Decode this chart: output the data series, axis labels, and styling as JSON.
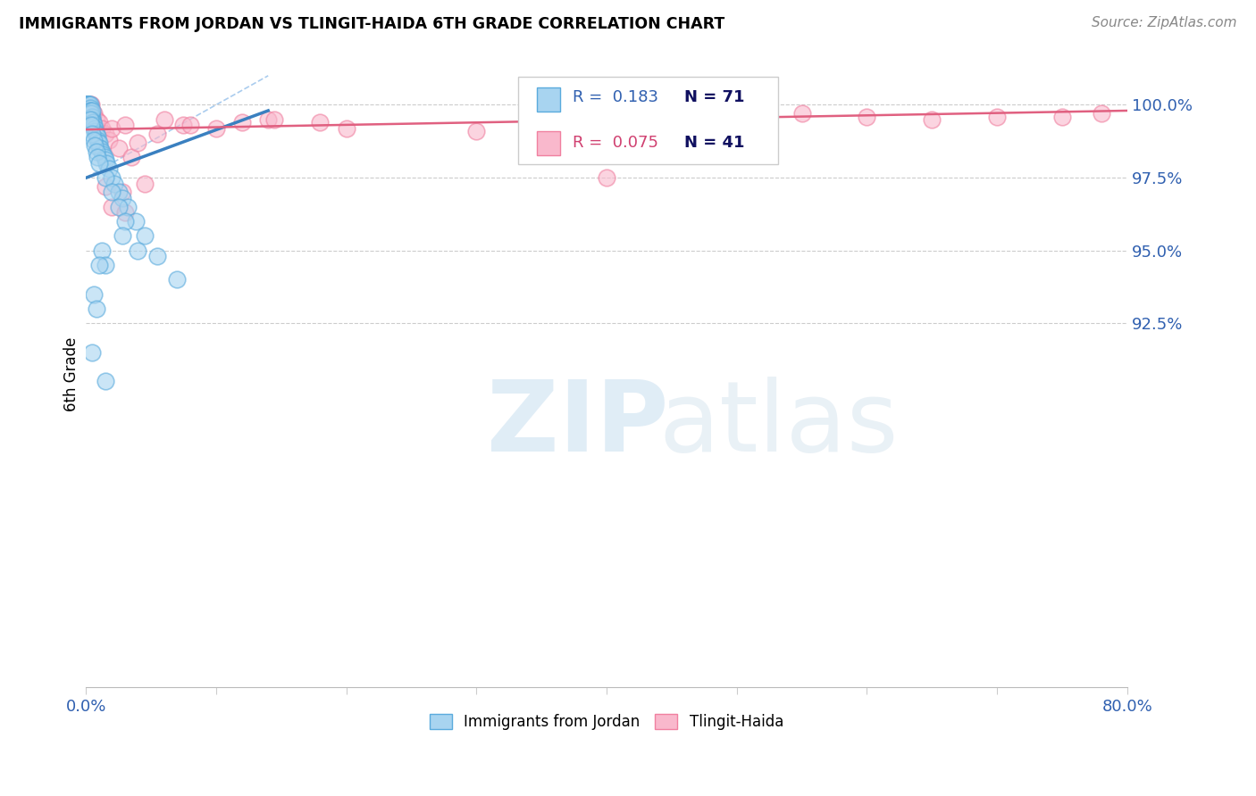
{
  "title": "IMMIGRANTS FROM JORDAN VS TLINGIT-HAIDA 6TH GRADE CORRELATION CHART",
  "source": "Source: ZipAtlas.com",
  "ylabel": "6th Grade",
  "xmin": 0.0,
  "xmax": 80.0,
  "ymin": 80.0,
  "ymax": 101.5,
  "yticks": [
    92.5,
    95.0,
    97.5,
    100.0
  ],
  "ytick_labels": [
    "92.5%",
    "95.0%",
    "97.5%",
    "100.0%"
  ],
  "legend_r1": "R =  0.183",
  "legend_n1": "N = 71",
  "legend_r2": "R =  0.075",
  "legend_n2": "N = 41",
  "color_blue": "#a8d4f0",
  "color_pink": "#f9b8cc",
  "color_blue_edge": "#5aabdd",
  "color_pink_edge": "#f080a0",
  "color_blue_line": "#3a80c0",
  "color_pink_line": "#e06080",
  "color_blue_text": "#3060b0",
  "color_pink_text": "#d04070",
  "color_dark_text": "#101060",
  "label_blue": "Immigrants from Jordan",
  "label_pink": "Tlingit-Haida",
  "blue_x": [
    0.05,
    0.08,
    0.1,
    0.1,
    0.12,
    0.15,
    0.15,
    0.18,
    0.2,
    0.2,
    0.22,
    0.25,
    0.25,
    0.3,
    0.3,
    0.3,
    0.35,
    0.35,
    0.4,
    0.4,
    0.45,
    0.5,
    0.5,
    0.55,
    0.6,
    0.65,
    0.7,
    0.75,
    0.8,
    0.85,
    0.9,
    0.95,
    1.0,
    1.0,
    1.1,
    1.2,
    1.3,
    1.4,
    1.5,
    1.6,
    1.8,
    2.0,
    2.2,
    2.5,
    2.8,
    3.2,
    3.8,
    4.5,
    5.5,
    7.0,
    0.3,
    0.4,
    0.5,
    0.6,
    0.7,
    0.8,
    0.9,
    1.0,
    1.5,
    2.0,
    2.5,
    3.0,
    1.2,
    1.5,
    2.8,
    4.0,
    0.6,
    0.8,
    1.0,
    0.5,
    1.5
  ],
  "blue_y": [
    100.0,
    100.0,
    100.0,
    99.8,
    100.0,
    100.0,
    99.9,
    100.0,
    100.0,
    99.8,
    100.0,
    100.0,
    99.7,
    100.0,
    99.9,
    99.8,
    99.8,
    99.7,
    99.7,
    99.5,
    99.6,
    99.5,
    99.8,
    99.4,
    99.3,
    99.2,
    99.1,
    99.0,
    99.0,
    98.9,
    98.8,
    98.7,
    98.7,
    98.5,
    98.5,
    98.4,
    98.3,
    98.2,
    98.1,
    98.0,
    97.8,
    97.5,
    97.3,
    97.0,
    96.8,
    96.5,
    96.0,
    95.5,
    94.8,
    94.0,
    99.5,
    99.3,
    99.0,
    98.8,
    98.6,
    98.4,
    98.2,
    98.0,
    97.5,
    97.0,
    96.5,
    96.0,
    95.0,
    94.5,
    95.5,
    95.0,
    93.5,
    93.0,
    94.5,
    91.5,
    90.5
  ],
  "pink_x": [
    0.1,
    0.2,
    0.3,
    0.4,
    0.5,
    0.6,
    0.8,
    1.0,
    1.2,
    1.5,
    1.8,
    2.0,
    2.5,
    3.0,
    3.5,
    4.0,
    5.5,
    6.0,
    7.5,
    10.0,
    14.0,
    14.5,
    18.0,
    30.0,
    35.0,
    55.0,
    65.0,
    70.0,
    75.0,
    78.0,
    40.0,
    2.0,
    3.0,
    1.5,
    2.8,
    4.5,
    8.0,
    12.0,
    20.0,
    48.0,
    60.0
  ],
  "pink_y": [
    100.0,
    100.0,
    100.0,
    100.0,
    99.8,
    99.7,
    99.5,
    99.4,
    99.2,
    99.0,
    98.8,
    99.2,
    98.5,
    99.3,
    98.2,
    98.7,
    99.0,
    99.5,
    99.3,
    99.2,
    99.5,
    99.5,
    99.4,
    99.1,
    99.6,
    99.7,
    99.5,
    99.6,
    99.6,
    99.7,
    97.5,
    96.5,
    96.3,
    97.2,
    97.0,
    97.3,
    99.3,
    99.4,
    99.2,
    99.5,
    99.6
  ],
  "blue_line_x": [
    0.05,
    14.0
  ],
  "blue_line_y": [
    97.5,
    99.8
  ],
  "pink_line_x": [
    0.0,
    80.0
  ],
  "pink_line_y": [
    99.15,
    99.8
  ],
  "diag_line_x": [
    0.0,
    14.0
  ],
  "diag_line_y": [
    97.5,
    101.0
  ]
}
